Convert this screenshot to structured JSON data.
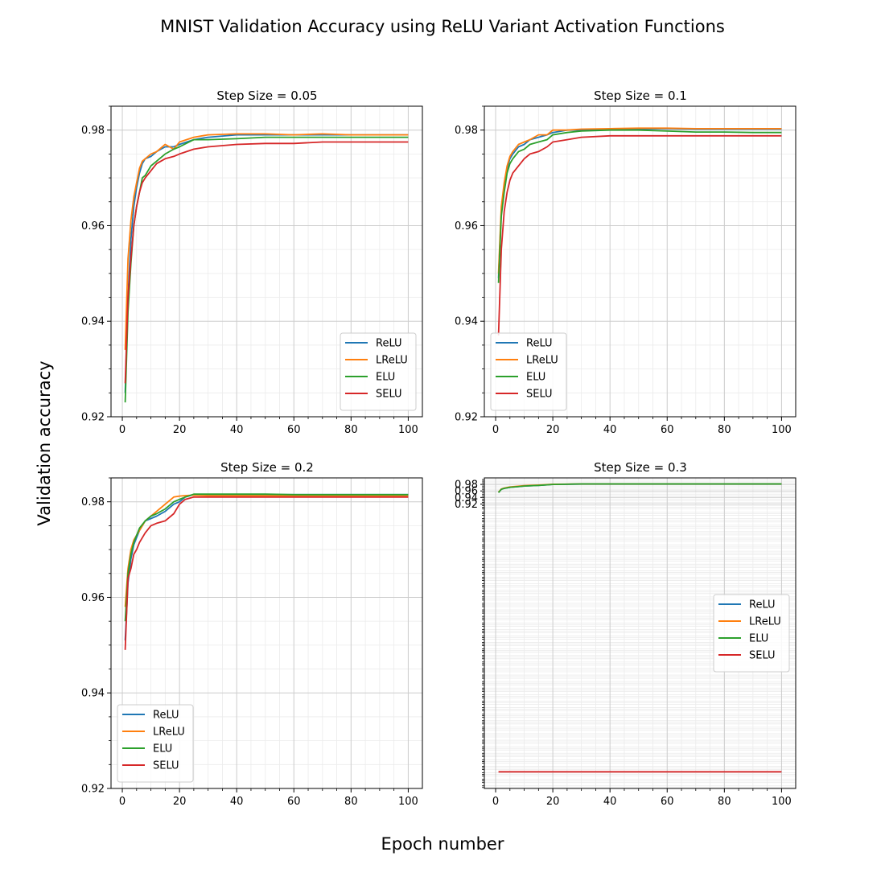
{
  "figure": {
    "title": "MNIST Validation Accuracy using ReLU Variant Activation Functions",
    "xlabel": "Epoch number",
    "ylabel": "Validation accuracy"
  },
  "colors": {
    "ReLU": "#1f77b4",
    "LReLU": "#ff7f0e",
    "ELU": "#2ca02c",
    "SELU": "#d62728"
  },
  "chart_data": [
    {
      "type": "line",
      "title": "Step Size = 0.05",
      "xlim": [
        -3.95,
        104.95
      ],
      "ylim": [
        0.92,
        0.985
      ],
      "xticks": [
        0,
        20,
        40,
        60,
        80,
        100
      ],
      "yticks": [
        0.92,
        0.94,
        0.96,
        0.98
      ],
      "grid": true,
      "legend": "lower right",
      "series": [
        {
          "name": "ReLU",
          "x": [
            1,
            2,
            3,
            4,
            5,
            6,
            7,
            8,
            10,
            12,
            15,
            18,
            20,
            25,
            30,
            40,
            50,
            60,
            70,
            80,
            90,
            100
          ],
          "y": [
            0.925,
            0.945,
            0.957,
            0.964,
            0.968,
            0.971,
            0.973,
            0.974,
            0.9745,
            0.9755,
            0.9765,
            0.9765,
            0.977,
            0.978,
            0.9785,
            0.979,
            0.979,
            0.979,
            0.979,
            0.979,
            0.979,
            0.979
          ]
        },
        {
          "name": "LReLU",
          "x": [
            1,
            2,
            3,
            4,
            5,
            6,
            7,
            8,
            10,
            12,
            15,
            18,
            20,
            25,
            30,
            40,
            50,
            60,
            70,
            80,
            90,
            100
          ],
          "y": [
            0.934,
            0.953,
            0.961,
            0.966,
            0.969,
            0.972,
            0.9735,
            0.974,
            0.975,
            0.9755,
            0.977,
            0.976,
            0.9775,
            0.9785,
            0.979,
            0.9792,
            0.9792,
            0.979,
            0.9792,
            0.979,
            0.979,
            0.979
          ]
        },
        {
          "name": "ELU",
          "x": [
            1,
            2,
            3,
            4,
            5,
            6,
            7,
            8,
            10,
            12,
            15,
            18,
            20,
            25,
            30,
            40,
            50,
            60,
            70,
            80,
            90,
            100
          ],
          "y": [
            0.923,
            0.942,
            0.952,
            0.96,
            0.964,
            0.967,
            0.97,
            0.9705,
            0.9725,
            0.9735,
            0.975,
            0.976,
            0.9765,
            0.978,
            0.978,
            0.9782,
            0.9785,
            0.9785,
            0.9785,
            0.9785,
            0.9785,
            0.9785
          ]
        },
        {
          "name": "SELU",
          "x": [
            1,
            2,
            3,
            4,
            5,
            6,
            7,
            8,
            10,
            12,
            15,
            18,
            20,
            25,
            30,
            40,
            50,
            60,
            70,
            80,
            90,
            100
          ],
          "y": [
            0.927,
            0.945,
            0.953,
            0.96,
            0.964,
            0.967,
            0.969,
            0.97,
            0.9715,
            0.973,
            0.974,
            0.9745,
            0.975,
            0.976,
            0.9765,
            0.977,
            0.9772,
            0.9772,
            0.9775,
            0.9775,
            0.9775,
            0.9775
          ]
        }
      ]
    },
    {
      "type": "line",
      "title": "Step Size = 0.1",
      "xlim": [
        -3.95,
        104.95
      ],
      "ylim": [
        0.92,
        0.985
      ],
      "xticks": [
        0,
        20,
        40,
        60,
        80,
        100
      ],
      "yticks": [
        0.92,
        0.94,
        0.96,
        0.98
      ],
      "grid": true,
      "legend": "lower left",
      "series": [
        {
          "name": "ReLU",
          "x": [
            1,
            2,
            3,
            4,
            5,
            6,
            8,
            10,
            12,
            15,
            18,
            20,
            25,
            30,
            40,
            50,
            60,
            70,
            80,
            90,
            100
          ],
          "y": [
            0.949,
            0.963,
            0.968,
            0.972,
            0.974,
            0.975,
            0.9765,
            0.977,
            0.978,
            0.9785,
            0.979,
            0.9795,
            0.98,
            0.98,
            0.9802,
            0.9802,
            0.9803,
            0.9802,
            0.9802,
            0.9802,
            0.9802
          ]
        },
        {
          "name": "LReLU",
          "x": [
            1,
            2,
            3,
            4,
            5,
            6,
            8,
            10,
            12,
            15,
            18,
            20,
            25,
            30,
            40,
            50,
            60,
            70,
            80,
            90,
            100
          ],
          "y": [
            0.95,
            0.964,
            0.969,
            0.9725,
            0.9745,
            0.9755,
            0.977,
            0.9775,
            0.978,
            0.979,
            0.979,
            0.98,
            0.98,
            0.9802,
            0.9803,
            0.9804,
            0.9804,
            0.9803,
            0.9803,
            0.9803,
            0.9803
          ]
        },
        {
          "name": "ELU",
          "x": [
            1,
            2,
            3,
            4,
            5,
            6,
            8,
            10,
            12,
            15,
            18,
            20,
            25,
            30,
            40,
            50,
            60,
            70,
            80,
            90,
            100
          ],
          "y": [
            0.948,
            0.962,
            0.967,
            0.971,
            0.973,
            0.974,
            0.9755,
            0.976,
            0.977,
            0.9775,
            0.978,
            0.979,
            0.9795,
            0.9798,
            0.98,
            0.98,
            0.9798,
            0.9796,
            0.9796,
            0.9795,
            0.9795
          ]
        },
        {
          "name": "SELU",
          "x": [
            1,
            2,
            3,
            4,
            5,
            6,
            8,
            10,
            12,
            15,
            18,
            20,
            25,
            30,
            40,
            50,
            60,
            70,
            80,
            90,
            100
          ],
          "y": [
            0.937,
            0.955,
            0.963,
            0.967,
            0.9695,
            0.971,
            0.9725,
            0.974,
            0.975,
            0.9755,
            0.9765,
            0.9775,
            0.978,
            0.9785,
            0.9788,
            0.9788,
            0.9788,
            0.9788,
            0.9788,
            0.9788,
            0.9788
          ]
        }
      ]
    },
    {
      "type": "line",
      "title": "Step Size = 0.2",
      "xlim": [
        -3.95,
        104.95
      ],
      "ylim": [
        0.92,
        0.985
      ],
      "xticks": [
        0,
        20,
        40,
        60,
        80,
        100
      ],
      "yticks": [
        0.92,
        0.94,
        0.96,
        0.98
      ],
      "grid": true,
      "legend": "lower left",
      "series": [
        {
          "name": "ReLU",
          "x": [
            1,
            2,
            3,
            4,
            5,
            6,
            8,
            10,
            12,
            15,
            18,
            20,
            22,
            25,
            30,
            40,
            50,
            60,
            70,
            80,
            90,
            100
          ],
          "y": [
            0.951,
            0.963,
            0.968,
            0.971,
            0.9725,
            0.974,
            0.976,
            0.9765,
            0.977,
            0.978,
            0.9795,
            0.98,
            0.981,
            0.9815,
            0.9815,
            0.9815,
            0.9815,
            0.9815,
            0.9815,
            0.9815,
            0.9815,
            0.9815
          ]
        },
        {
          "name": "LReLU",
          "x": [
            1,
            2,
            3,
            4,
            5,
            6,
            8,
            10,
            12,
            15,
            18,
            20,
            22,
            25,
            30,
            40,
            50,
            60,
            70,
            80,
            90,
            100
          ],
          "y": [
            0.958,
            0.966,
            0.97,
            0.972,
            0.973,
            0.974,
            0.976,
            0.977,
            0.978,
            0.9795,
            0.981,
            0.9812,
            0.9813,
            0.9814,
            0.9813,
            0.9813,
            0.9813,
            0.9813,
            0.9813,
            0.9813,
            0.9813,
            0.9813
          ]
        },
        {
          "name": "ELU",
          "x": [
            1,
            2,
            3,
            4,
            5,
            6,
            8,
            10,
            12,
            15,
            18,
            20,
            22,
            25,
            30,
            40,
            50,
            60,
            70,
            80,
            90,
            100
          ],
          "y": [
            0.955,
            0.965,
            0.969,
            0.9715,
            0.973,
            0.9745,
            0.976,
            0.977,
            0.9775,
            0.9785,
            0.98,
            0.9805,
            0.981,
            0.9816,
            0.9816,
            0.9816,
            0.9816,
            0.9815,
            0.9815,
            0.9815,
            0.9815,
            0.9815
          ]
        },
        {
          "name": "SELU",
          "x": [
            1,
            2,
            3,
            4,
            5,
            6,
            8,
            10,
            12,
            15,
            18,
            20,
            22,
            25,
            30,
            40,
            50,
            60,
            70,
            80,
            90,
            100
          ],
          "y": [
            0.949,
            0.964,
            0.966,
            0.969,
            0.97,
            0.9715,
            0.9735,
            0.975,
            0.9755,
            0.976,
            0.9775,
            0.9795,
            0.9805,
            0.981,
            0.981,
            0.981,
            0.981,
            0.981,
            0.981,
            0.981,
            0.981,
            0.981
          ]
        }
      ]
    },
    {
      "type": "line",
      "title": "Step Size = 0.3",
      "xlim": [
        -3.95,
        104.95
      ],
      "ylim": [
        0.047,
        1.0
      ],
      "xticks": [
        0,
        20,
        40,
        60,
        80,
        100
      ],
      "yticks": [
        0.92,
        0.94,
        0.96,
        0.98
      ],
      "grid": true,
      "legend": "center right",
      "series": [
        {
          "name": "ReLU",
          "x": [
            1,
            2,
            3,
            5,
            10,
            15,
            20,
            30,
            40,
            60,
            80,
            100
          ],
          "y": [
            0.955,
            0.965,
            0.968,
            0.971,
            0.975,
            0.977,
            0.98,
            0.981,
            0.981,
            0.981,
            0.981,
            0.981
          ]
        },
        {
          "name": "LReLU",
          "x": [
            1,
            2,
            3,
            5,
            10,
            15,
            20,
            30,
            40,
            60,
            80,
            100
          ],
          "y": [
            0.956,
            0.966,
            0.969,
            0.972,
            0.976,
            0.978,
            0.9805,
            0.9812,
            0.9812,
            0.9812,
            0.9812,
            0.9812
          ]
        },
        {
          "name": "ELU",
          "x": [
            1,
            2,
            3,
            5,
            10,
            15,
            20,
            30,
            40,
            60,
            80,
            100
          ],
          "y": [
            0.955,
            0.965,
            0.968,
            0.971,
            0.975,
            0.977,
            0.98,
            0.9815,
            0.9815,
            0.9815,
            0.9815,
            0.9815
          ]
        },
        {
          "name": "SELU",
          "x": [
            1,
            100
          ],
          "y": [
            0.098,
            0.098
          ]
        }
      ]
    }
  ]
}
